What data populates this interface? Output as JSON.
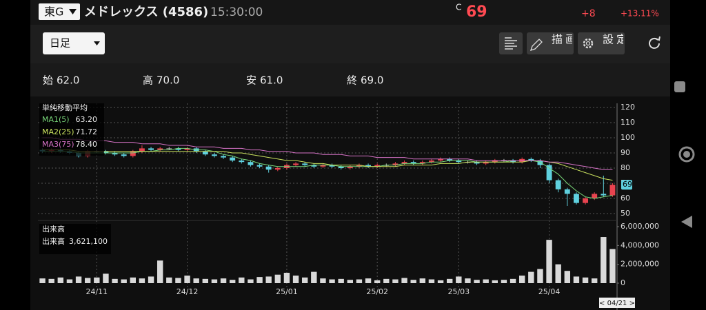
{
  "header": {
    "exchange": "東G",
    "name": "メドレックス (4586)",
    "time": "15:30:00",
    "c_label": "C",
    "price": "69",
    "change": "+8",
    "change_pct": "+13.11%"
  },
  "toolbar": {
    "period": "日足",
    "draw": "描画",
    "settings": "設定"
  },
  "ohlc": [
    {
      "label": "始",
      "value": "62.0"
    },
    {
      "label": "高",
      "value": "70.0"
    },
    {
      "label": "安",
      "value": "61.0"
    },
    {
      "label": "終",
      "value": "69.0"
    }
  ],
  "chart_data": [
    {
      "type": "candlestick",
      "legend_title": "単純移動平均",
      "cursor_label": "< 04/21 >",
      "up_color": "#e8434f",
      "down_color": "#5fd0de",
      "grid": true,
      "categories": [
        null,
        null,
        null,
        null,
        null,
        null,
        "24/11",
        null,
        null,
        null,
        null,
        null,
        null,
        null,
        null,
        null,
        "24/12",
        null,
        null,
        null,
        null,
        null,
        null,
        null,
        null,
        null,
        null,
        "25/01",
        null,
        null,
        null,
        null,
        null,
        null,
        null,
        null,
        null,
        "25/02",
        null,
        null,
        null,
        null,
        null,
        null,
        null,
        null,
        "25/03",
        null,
        null,
        null,
        null,
        null,
        null,
        null,
        null,
        null,
        "25/04",
        null,
        null,
        null,
        null,
        null,
        null,
        null
      ],
      "open": [
        92,
        91,
        92,
        91,
        90,
        88,
        91,
        91,
        90,
        89,
        88,
        91,
        93,
        92,
        93,
        93,
        92,
        93,
        91,
        89,
        88,
        87,
        85,
        84,
        82,
        81,
        79,
        80,
        82,
        83,
        82,
        81,
        82,
        81,
        80,
        81,
        82,
        81,
        82,
        82,
        83,
        84,
        83,
        84,
        85,
        86,
        85,
        84,
        84,
        83,
        84,
        85,
        85,
        84,
        86,
        85,
        82,
        72,
        66,
        63,
        57,
        60,
        63,
        62
      ],
      "high": [
        93,
        93,
        93,
        92,
        91,
        92,
        92,
        92,
        91,
        90,
        92,
        95,
        94,
        94,
        94,
        94,
        94,
        94,
        92,
        90,
        89,
        88,
        86,
        85,
        83,
        82,
        81,
        83,
        84,
        84,
        83,
        83,
        83,
        82,
        82,
        83,
        83,
        83,
        83,
        84,
        85,
        85,
        85,
        86,
        87,
        87,
        86,
        85,
        85,
        85,
        86,
        86,
        86,
        87,
        87,
        86,
        83,
        73,
        67,
        64,
        61,
        64,
        75,
        70
      ],
      "low": [
        90,
        90,
        90,
        89,
        87,
        87,
        90,
        89,
        88,
        87,
        87,
        90,
        91,
        91,
        92,
        91,
        91,
        90,
        88,
        87,
        86,
        84,
        83,
        81,
        80,
        77,
        78,
        79,
        81,
        81,
        80,
        80,
        80,
        79,
        79,
        80,
        80,
        80,
        81,
        81,
        82,
        82,
        82,
        83,
        84,
        84,
        83,
        83,
        82,
        82,
        83,
        84,
        83,
        83,
        84,
        80,
        70,
        64,
        55,
        56,
        56,
        59,
        61,
        61
      ],
      "close": [
        91,
        92,
        91,
        90,
        88,
        91,
        91,
        90,
        89,
        88,
        91,
        93,
        92,
        93,
        93,
        92,
        93,
        91,
        89,
        88,
        87,
        85,
        84,
        82,
        81,
        79,
        80,
        82,
        83,
        82,
        81,
        82,
        81,
        80,
        81,
        82,
        81,
        82,
        82,
        83,
        84,
        83,
        84,
        85,
        86,
        85,
        84,
        84,
        83,
        84,
        85,
        85,
        84,
        86,
        85,
        82,
        72,
        66,
        63,
        57,
        60,
        63,
        62,
        69
      ],
      "series": [
        {
          "name": "MA1(5)",
          "legend_value": "63.20",
          "color": "#79d87a",
          "values": [
            91,
            91,
            91,
            91,
            90,
            90,
            90,
            90,
            90,
            90,
            90,
            91,
            91,
            92,
            92,
            93,
            93,
            92,
            92,
            91,
            89,
            88,
            86,
            85,
            83,
            82,
            81,
            81,
            81,
            81,
            82,
            82,
            82,
            81,
            81,
            81,
            81,
            81,
            82,
            82,
            83,
            83,
            83,
            84,
            84,
            85,
            85,
            85,
            84,
            84,
            84,
            84,
            85,
            85,
            85,
            84,
            80,
            76,
            70,
            65,
            61,
            60,
            61,
            62
          ]
        },
        {
          "name": "MA2(25)",
          "legend_value": "71.72",
          "color": "#cbe35f",
          "values": [
            92,
            92,
            92,
            92,
            91,
            91,
            91,
            91,
            91,
            91,
            91,
            91,
            91,
            91,
            91,
            91,
            91,
            91,
            91,
            91,
            91,
            90,
            90,
            89,
            88,
            87,
            86,
            85,
            85,
            84,
            83,
            83,
            82,
            82,
            82,
            82,
            81,
            81,
            81,
            81,
            82,
            82,
            82,
            82,
            83,
            83,
            83,
            84,
            84,
            84,
            84,
            84,
            84,
            84,
            85,
            85,
            84,
            83,
            81,
            79,
            77,
            75,
            73,
            72
          ]
        },
        {
          "name": "MA3(75)",
          "legend_value": "78.40",
          "color": "#d873c8",
          "values": [
            100,
            100,
            99,
            99,
            99,
            98,
            98,
            98,
            97,
            97,
            97,
            96,
            96,
            96,
            95,
            95,
            95,
            94,
            94,
            94,
            93,
            93,
            93,
            92,
            92,
            91,
            91,
            91,
            90,
            90,
            90,
            89,
            89,
            89,
            88,
            88,
            88,
            87,
            87,
            87,
            87,
            86,
            86,
            86,
            86,
            86,
            86,
            86,
            85,
            85,
            85,
            85,
            85,
            85,
            85,
            85,
            84,
            84,
            83,
            82,
            81,
            80,
            79,
            79
          ]
        }
      ],
      "ylim": [
        50,
        120
      ],
      "yticks": [
        50,
        60,
        70,
        80,
        90,
        100,
        110,
        120
      ]
    },
    {
      "type": "bar",
      "title": "出来高",
      "color": "#d9d9d9",
      "values": [
        500000,
        450000,
        600000,
        400000,
        700000,
        550000,
        600000,
        1000000,
        450000,
        400000,
        600000,
        500000,
        700000,
        2400000,
        600000,
        550000,
        800000,
        500000,
        450000,
        400000,
        500000,
        350000,
        600000,
        400000,
        650000,
        700000,
        900000,
        1100000,
        800000,
        600000,
        1200000,
        500000,
        400000,
        450000,
        350000,
        400000,
        500000,
        300000,
        450000,
        400000,
        550000,
        350000,
        500000,
        400000,
        300000,
        450000,
        700000,
        500000,
        350000,
        400000,
        300000,
        350000,
        450000,
        800000,
        1200000,
        1500000,
        4600000,
        2000000,
        1300000,
        700000,
        600000,
        500000,
        4900000,
        3621100
      ],
      "value_labels": [
        null,
        null,
        null,
        null,
        null,
        null,
        null,
        null,
        null,
        null,
        null,
        null,
        null,
        null,
        null,
        null,
        null,
        null,
        null,
        null,
        null,
        null,
        null,
        null,
        null,
        null,
        null,
        null,
        null,
        null,
        null,
        null,
        null,
        null,
        null,
        null,
        null,
        null,
        null,
        null,
        null,
        null,
        null,
        null,
        null,
        null,
        null,
        null,
        null,
        null,
        null,
        null,
        null,
        null,
        null,
        null,
        null,
        null,
        null,
        null,
        null,
        null,
        null,
        "3,621,100"
      ],
      "ylim": [
        0,
        6000000
      ],
      "yticks": [
        0,
        {
          "value": 2000000,
          "label": "2,000,000"
        },
        {
          "value": 4000000,
          "label": "4,000,000"
        },
        {
          "value": 6000000,
          "label": "6,000,000"
        }
      ]
    }
  ]
}
